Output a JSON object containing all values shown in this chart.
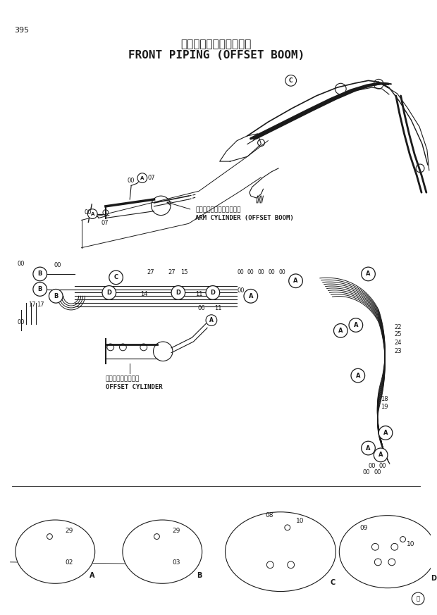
{
  "page_number": "395",
  "title_jp": "フロント配管（側溝掘）",
  "title_en": "FRONT PIPING (OFFSET BOOM)",
  "bg_color": "#ffffff",
  "lc": "#1a1a1a",
  "arm_cyl_jp": "アームシリンダ（側溝掘）",
  "arm_cyl_en": "ARM CYLINDER (OFFSET BOOM)",
  "offset_cyl_jp": "オフセットシリンダ",
  "offset_cyl_en": "OFFSET CYLINDER",
  "figsize": [
    6.2,
    8.73
  ],
  "dpi": 100
}
